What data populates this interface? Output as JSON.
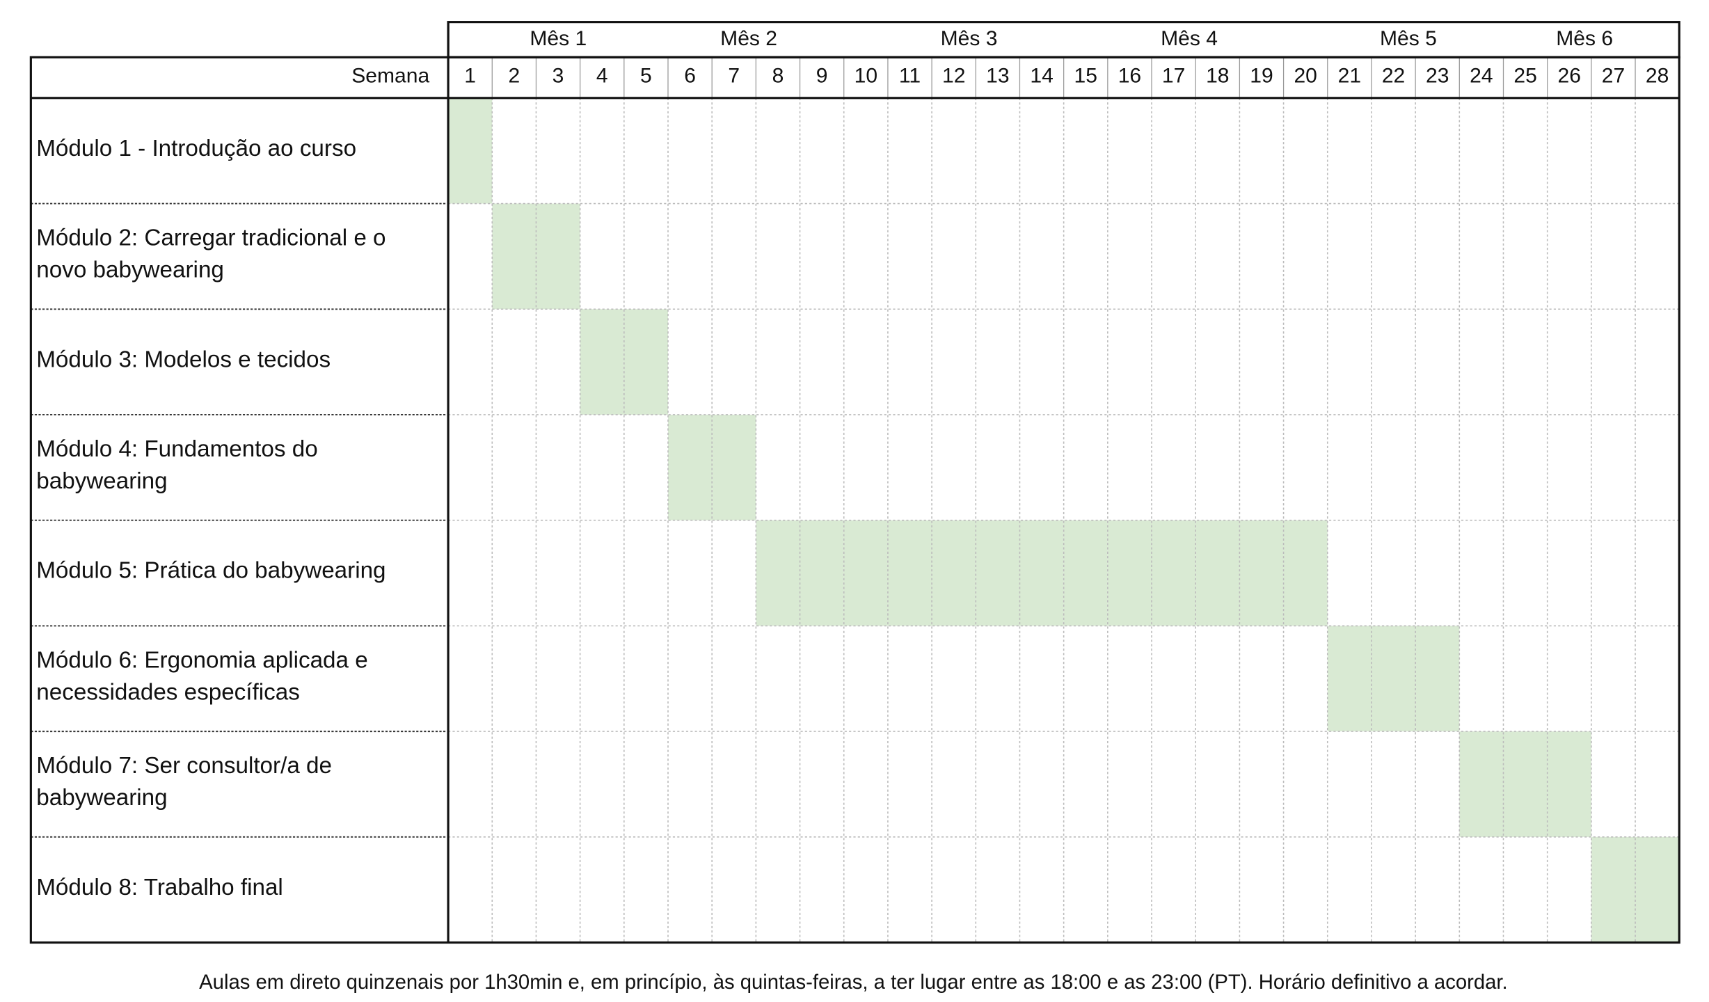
{
  "header": {
    "months": [
      "Mês 1",
      "Mês 2",
      "Mês 3",
      "Mês 4",
      "Mês 5",
      "Mês 6"
    ],
    "week_label": "Semana",
    "weeks": [
      1,
      2,
      3,
      4,
      5,
      6,
      7,
      8,
      9,
      10,
      11,
      12,
      13,
      14,
      15,
      16,
      17,
      18,
      19,
      20,
      21,
      22,
      23,
      24,
      25,
      26,
      27,
      28
    ]
  },
  "modules": [
    {
      "label": [
        "Módulo 1 - Introdução ao curso"
      ],
      "weeks": [
        1
      ]
    },
    {
      "label": [
        "Módulo 2: Carregar tradicional e o",
        "novo babywearing"
      ],
      "weeks": [
        2,
        3
      ]
    },
    {
      "label": [
        "Módulo 3: Modelos e tecidos"
      ],
      "weeks": [
        4,
        5
      ]
    },
    {
      "label": [
        "Módulo 4: Fundamentos do",
        "babywearing"
      ],
      "weeks": [
        6,
        7
      ]
    },
    {
      "label": [
        "Módulo 5: Prática do babywearing"
      ],
      "weeks": [
        8,
        9,
        10,
        11,
        12,
        13,
        14,
        15,
        16,
        17,
        18,
        19,
        20
      ]
    },
    {
      "label": [
        "Módulo 6: Ergonomia aplicada e",
        "necessidades específicas"
      ],
      "weeks": [
        21,
        22,
        23
      ]
    },
    {
      "label": [
        "Módulo 7: Ser consultor/a de",
        "babywearing"
      ],
      "weeks": [
        24,
        25,
        26
      ]
    },
    {
      "label": [
        "Módulo 8: Trabalho final"
      ],
      "weeks": [
        27,
        28
      ]
    }
  ],
  "footer": "Aulas em direto quinzenais por 1h30min e, em princípio, às quintas-feiras, a ter lugar entre as 18:00 e as 23:00 (PT). Horário definitivo a acordar."
}
